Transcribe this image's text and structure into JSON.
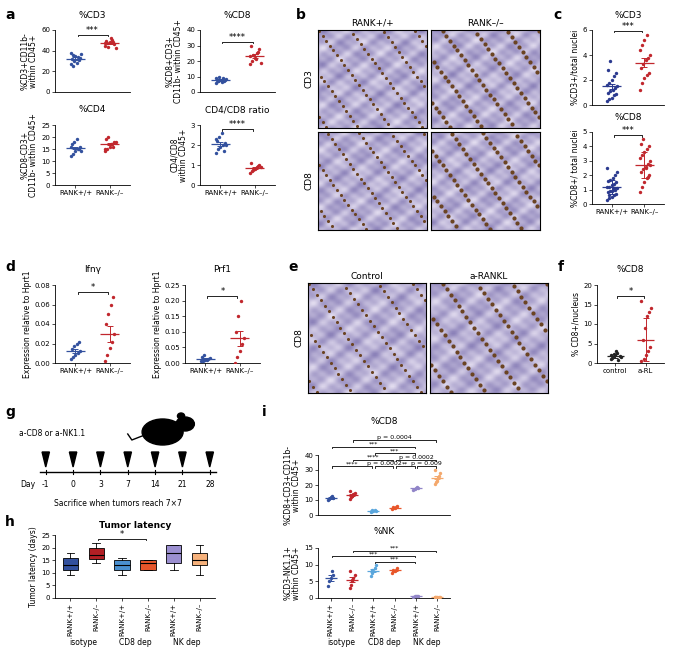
{
  "chart_data": [
    {
      "type": "dot",
      "panel": "a",
      "title": "%CD3",
      "ylabel": "%CD3+CD11b-\nwithin CD45+",
      "categories": [
        null,
        null
      ],
      "colors": [
        "#33519e",
        "#c1272d"
      ],
      "marker": "o",
      "values": [
        [
          38,
          36,
          35,
          34,
          33,
          32,
          30,
          28,
          31,
          37,
          27,
          25
        ],
        [
          45,
          47,
          48,
          50,
          46,
          49,
          44,
          52,
          48,
          43,
          47
        ]
      ],
      "means": [
        32.2,
        47
      ],
      "errors": [
        1.2,
        0.8
      ],
      "ylim": [
        0,
        60
      ],
      "yticks": [
        0,
        20,
        40,
        60
      ],
      "annotations": [
        {
          "text": "***",
          "groups": [
            0,
            1
          ]
        }
      ]
    },
    {
      "type": "dot",
      "title": "%CD8",
      "ylabel": "%CD8+CD3+\nCD11b- within CD45+",
      "categories": [
        null,
        null
      ],
      "colors": [
        "#33519e",
        "#c1272d"
      ],
      "marker": "o",
      "values": [
        [
          6,
          7,
          8,
          9,
          7.5,
          8,
          10,
          6.5,
          7,
          8.5,
          9,
          7
        ],
        [
          18,
          20,
          22,
          25,
          28,
          30,
          24,
          21,
          26,
          19,
          23
        ]
      ],
      "means": [
        7.8,
        23.3
      ],
      "errors": [
        0.4,
        1.2
      ],
      "ylim": [
        0,
        40
      ],
      "yticks": [
        0,
        10,
        20,
        30,
        40
      ],
      "annotations": [
        {
          "text": "****",
          "groups": [
            0,
            1
          ]
        }
      ]
    },
    {
      "type": "dot",
      "title": "%CD4",
      "ylabel": "%CD8-CD3+\nCD11b- within CD45+",
      "categories": [
        "RANK+/+",
        "RANK–/–"
      ],
      "colors": [
        "#33519e",
        "#c1272d"
      ],
      "marker": "o",
      "values": [
        [
          12,
          13,
          14,
          15,
          16,
          17,
          18,
          19,
          15,
          14,
          16
        ],
        [
          14,
          15,
          16,
          17,
          18,
          19,
          20,
          17,
          16,
          18,
          15
        ]
      ],
      "means": [
        15.4,
        17.2
      ],
      "errors": [
        0.6,
        0.5
      ],
      "ylim": [
        0,
        25
      ],
      "yticks": [
        0,
        5,
        10,
        15,
        20,
        25
      ],
      "annotations": []
    },
    {
      "type": "dot",
      "title": "CD4/CD8 ratio",
      "ylabel": "CD4/CD8\nwithin CD45+",
      "categories": [
        "RANK+/+",
        "RANK–/–"
      ],
      "colors": [
        "#33519e",
        "#c1272d"
      ],
      "marker": "o",
      "values": [
        [
          1.6,
          1.8,
          1.9,
          2.0,
          2.1,
          2.2,
          2.4,
          2.6,
          1.7,
          2.0,
          2.3
        ],
        [
          0.6,
          0.7,
          0.8,
          0.9,
          1.0,
          1.1,
          0.75,
          0.85,
          0.95,
          0.9
        ]
      ],
      "means": [
        2.05,
        0.86
      ],
      "errors": [
        0.09,
        0.05
      ],
      "ylim": [
        0,
        3
      ],
      "yticks": [
        0,
        1,
        2,
        3
      ],
      "annotations": [
        {
          "text": "****",
          "groups": [
            0,
            1
          ]
        }
      ]
    },
    {
      "type": "image",
      "panel": "b",
      "columns": [
        "RANK+/+",
        "RANK–/–"
      ],
      "rows": [
        "CD3",
        "CD8"
      ]
    },
    {
      "type": "dot",
      "panel": "c",
      "title": "%CD3",
      "ylabel": "%CD3+/total nuclei",
      "categories": [
        null,
        null
      ],
      "colors": [
        "#2b3a8f",
        "#c1272d"
      ],
      "marker": "o",
      "values": [
        [
          0.3,
          0.5,
          0.6,
          0.8,
          0.9,
          1,
          1.1,
          1.2,
          1.4,
          1.5,
          1.6,
          1.8,
          2,
          2.3,
          2.6,
          2.8,
          3.5
        ],
        [
          1.2,
          1.8,
          2.2,
          2.4,
          2.6,
          3,
          3.3,
          3.6,
          3.8,
          4,
          4.4,
          4.8,
          5.2,
          5.6
        ]
      ],
      "means": [
        1.5,
        3.4
      ],
      "errors": [
        0.2,
        0.35
      ],
      "ylim": [
        0,
        6
      ],
      "yticks": [
        0,
        2,
        4,
        6
      ],
      "annotations": [
        {
          "text": "***",
          "groups": [
            0,
            1
          ]
        }
      ]
    },
    {
      "type": "dot",
      "title": "%CD8",
      "ylabel": "%CD8+/ total nuclei",
      "categories": [
        "RANK+/+",
        "RANK–/–"
      ],
      "colors": [
        "#2b3a8f",
        "#c1272d"
      ],
      "marker": "o",
      "values": [
        [
          0.3,
          0.4,
          0.5,
          0.6,
          0.7,
          0.8,
          0.9,
          1,
          1,
          1.1,
          1.2,
          1.2,
          1.3,
          1.4,
          1.5,
          1.6,
          1.7,
          1.8,
          2,
          2.2,
          2.5,
          0.6,
          0.9,
          1.1
        ],
        [
          0.8,
          1.2,
          1.5,
          1.8,
          2,
          2.2,
          2.4,
          2.6,
          2.8,
          3,
          3.2,
          3.4,
          3.6,
          3.8,
          4,
          4.2,
          4.5,
          2.5,
          1.9,
          2.7
        ]
      ],
      "means": [
        1.2,
        2.7
      ],
      "errors": [
        0.5,
        0.9
      ],
      "ylim": [
        0,
        5
      ],
      "yticks": [
        0,
        1,
        2,
        3,
        4,
        5
      ],
      "annotations": [
        {
          "text": "***",
          "groups": [
            0,
            1
          ]
        }
      ]
    },
    {
      "type": "dot",
      "panel": "d",
      "title": "Ifnγ",
      "ylabel": "Expression relative to Hprt1",
      "categories": [
        "RANK+/+",
        "RANK–/–"
      ],
      "colors": [
        "#33519e",
        "#c1272d"
      ],
      "marker": "o",
      "values": [
        [
          0.004,
          0.006,
          0.008,
          0.01,
          0.012,
          0.014,
          0.017,
          0.02,
          0.022
        ],
        [
          0.002,
          0.008,
          0.015,
          0.022,
          0.03,
          0.04,
          0.05,
          0.06,
          0.068
        ]
      ],
      "means": [
        0.012,
        0.03
      ],
      "errors": [
        0.002,
        0.008
      ],
      "ylim": [
        0,
        0.08
      ],
      "yticks": [
        {
          "value": 0,
          "label": "0.00"
        },
        0.02,
        0.04,
        0.06,
        0.08
      ],
      "annotations": [
        {
          "text": "*",
          "groups": [
            0,
            1
          ]
        }
      ]
    },
    {
      "type": "dot",
      "title": "Prf1",
      "ylabel": "Expression relative to Hprt1",
      "categories": [
        "RANK+/+",
        "RANK–/–"
      ],
      "colors": [
        "#33519e",
        "#c1272d"
      ],
      "marker": "o",
      "values": [
        [
          0.005,
          0.008,
          0.01,
          0.012,
          0.015,
          0.02,
          0.025,
          0.01
        ],
        [
          0.0,
          0.02,
          0.04,
          0.06,
          0.08,
          0.1,
          0.15,
          0.2
        ]
      ],
      "means": [
        0.013,
        0.08
      ],
      "errors": [
        0.002,
        0.024
      ],
      "ylim": [
        0,
        0.25
      ],
      "yticks": [
        {
          "value": 0,
          "label": "0.00"
        },
        0.05,
        {
          "value": 0.1,
          "label": "0.10"
        },
        0.15,
        {
          "value": 0.2,
          "label": "0.20"
        },
        0.25
      ],
      "annotations": [
        {
          "text": "*",
          "groups": [
            0,
            1
          ]
        }
      ]
    },
    {
      "type": "image",
      "panel": "e",
      "columns": [
        "Control",
        "a-RANKL"
      ],
      "rows": [
        "CD8"
      ]
    },
    {
      "type": "dot",
      "panel": "f",
      "title": "%CD8",
      "ylabel": "% CD8+/nucleus",
      "categories": [
        "control",
        "a-RL"
      ],
      "colors": [
        "#222222",
        "#c1272d"
      ],
      "marker": "o",
      "values": [
        [
          1,
          1.5,
          2,
          2.5,
          1.8,
          1.2,
          2.2,
          3,
          0.8,
          1.6,
          2.1
        ],
        [
          0.5,
          1,
          2,
          3,
          4,
          6,
          9,
          12,
          13,
          14,
          16
        ]
      ],
      "means": [
        1.8,
        6
      ],
      "errors": [
        0.6,
        5.5
      ],
      "ylim": [
        0,
        20
      ],
      "yticks": [
        0,
        5,
        10,
        15,
        20
      ],
      "annotations": [
        {
          "text": "*",
          "groups": [
            0,
            1
          ]
        }
      ]
    },
    {
      "type": "diagram",
      "panel": "g",
      "treatment_label": "a-CD8 or a-NK1.1",
      "day_label": "Day",
      "days": [
        -1,
        0,
        3,
        7,
        14,
        21,
        28
      ],
      "note": "Sacrifice when tumors reach 7×7"
    },
    {
      "type": "box",
      "panel": "h",
      "title": "Tumor latency",
      "ylabel": "Tumor latency (days)",
      "categories": [
        "RANK+/+",
        "RANK–/–",
        "RANK+/+",
        "RANK–/–",
        "RANK+/+",
        "RANK–/–"
      ],
      "colors": [
        "#33519e",
        "#b21f24",
        "#4a90d0",
        "#e6552a",
        "#9b8fd0",
        "#f6b17b"
      ],
      "boxes": [
        {
          "min": 9,
          "q1": 11,
          "median": 13,
          "q3": 16,
          "max": 18
        },
        {
          "min": 14,
          "q1": 15.5,
          "median": 17,
          "q3": 20,
          "max": 22
        },
        {
          "min": 9,
          "q1": 11,
          "median": 13,
          "q3": 15,
          "max": 16
        },
        {
          "min": 11,
          "q1": 11,
          "median": 14,
          "q3": 15,
          "max": 15
        },
        {
          "min": 11,
          "q1": 14,
          "median": 18,
          "q3": 21,
          "max": 21
        },
        {
          "min": 9,
          "q1": 13,
          "median": 15,
          "q3": 18,
          "max": 21
        }
      ],
      "ylim": [
        0,
        25
      ],
      "yticks": [
        0,
        5,
        10,
        15,
        20,
        25
      ],
      "groups": [
        {
          "label": "isotype",
          "span": [
            0,
            1
          ]
        },
        {
          "label": "CD8 dep",
          "span": [
            2,
            3
          ]
        },
        {
          "label": "NK dep",
          "span": [
            4,
            5
          ]
        }
      ],
      "annotations": [
        {
          "text": "*",
          "groups": [
            1,
            3
          ]
        }
      ]
    },
    {
      "type": "dot",
      "panel": "i",
      "title": "%CD8",
      "ylabel": "%CD8+CD3+CD11b-\nwithin CD45+",
      "categories": [
        null,
        null,
        null,
        null,
        null,
        null
      ],
      "colors": [
        "#33519e",
        "#c1272d",
        "#5aa6dc",
        "#e8562a",
        "#9185c8",
        "#f4a86c"
      ],
      "marker": "o",
      "values": [
        [
          10,
          11,
          12,
          13,
          11.5
        ],
        [
          11,
          12,
          13,
          14,
          15,
          16,
          13
        ],
        [
          2,
          2.5,
          3,
          3.5,
          2.8,
          3.2
        ],
        [
          4,
          4.5,
          5,
          5.5,
          6,
          5.2
        ],
        [
          17,
          17.5,
          18,
          18.5,
          18
        ],
        [
          21,
          22,
          24,
          26,
          28,
          30,
          23,
          25
        ]
      ],
      "means": [
        11.5,
        13.5,
        3,
        5,
        18,
        25
      ],
      "errors": [
        0.6,
        0.7,
        0.2,
        0.3,
        0.3,
        1.1
      ],
      "ylim": [
        0,
        40
      ],
      "yticks": [
        0,
        10,
        20,
        30,
        40
      ],
      "annotations": [
        {
          "text": "****",
          "groups": [
            0,
            2
          ]
        },
        {
          "text": "****",
          "groups": [
            1,
            3
          ]
        },
        {
          "text": "p = 0.0002",
          "groups": [
            2,
            3
          ]
        },
        {
          "text": "***",
          "groups": [
            2,
            4
          ]
        },
        {
          "text": "p = 0.0002",
          "groups": [
            3,
            5
          ]
        },
        {
          "text": "p = 0.009",
          "groups": [
            4,
            5
          ]
        },
        {
          "text": "**",
          "groups": [
            3,
            4
          ]
        },
        {
          "text": "***",
          "groups": [
            0,
            4
          ]
        },
        {
          "text": "p = 0.0004",
          "groups": [
            1,
            5
          ]
        }
      ]
    },
    {
      "type": "dot",
      "title": "%NK",
      "ylabel": "%CD3-NK1.1+\nwithin CD45+",
      "categories": [
        "RANK+/+",
        "RANK–/–",
        "RANK+/+",
        "RANK–/–",
        "RANK+/+",
        "RANK–/–"
      ],
      "colors": [
        "#33519e",
        "#c1272d",
        "#5aa6dc",
        "#e8562a",
        "#9185c8",
        "#f4a86c"
      ],
      "marker": "o",
      "values": [
        [
          3.5,
          5,
          6,
          8,
          7
        ],
        [
          3,
          4,
          5,
          6,
          7,
          8,
          5.5
        ],
        [
          6.5,
          7.5,
          8,
          9,
          10,
          8.5
        ],
        [
          7.5,
          8,
          8.2,
          8.5,
          9,
          8.3
        ],
        [
          0.3,
          0.5,
          0.6,
          0.7,
          0.5
        ],
        [
          0.2,
          0.3,
          0.4,
          0.3,
          0.35,
          0.25
        ]
      ],
      "means": [
        6,
        5.5,
        8.2,
        8.3,
        0.5,
        0.3
      ],
      "errors": [
        0.8,
        0.7,
        0.5,
        0.2,
        0.08,
        0.03
      ],
      "ylim": [
        0,
        15
      ],
      "yticks": [
        0,
        5,
        10,
        15
      ],
      "groups": [
        {
          "label": "isotype",
          "span": [
            0,
            1
          ]
        },
        {
          "label": "CD8 dep",
          "span": [
            2,
            3
          ]
        },
        {
          "label": "NK dep",
          "span": [
            4,
            5
          ]
        }
      ],
      "annotations": [
        {
          "text": "***",
          "groups": [
            2,
            4
          ]
        },
        {
          "text": "***",
          "groups": [
            0,
            4
          ]
        },
        {
          "text": "***",
          "groups": [
            1,
            5
          ]
        }
      ]
    }
  ]
}
